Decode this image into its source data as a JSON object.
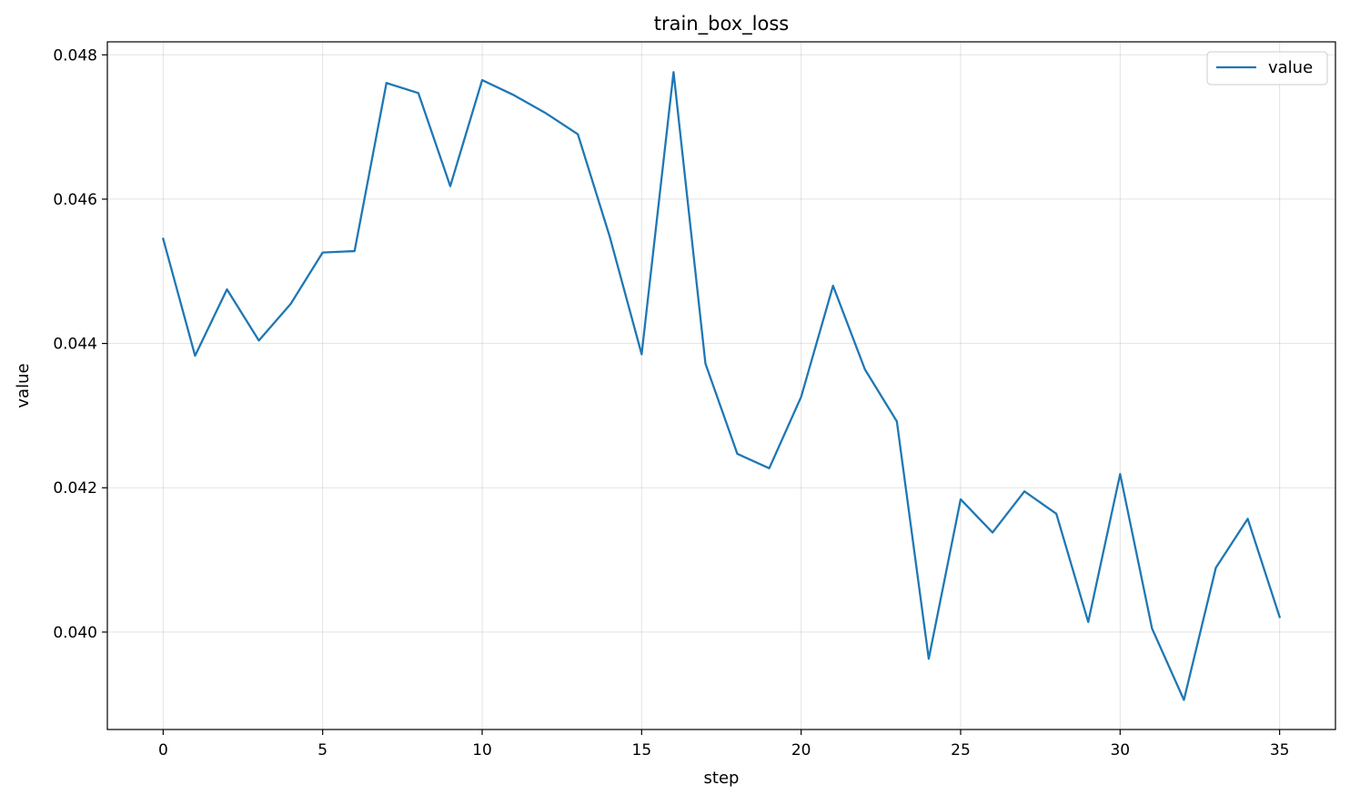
{
  "chart_data": {
    "type": "line",
    "title": "train_box_loss",
    "xlabel": "step",
    "ylabel": "value",
    "xlim": [
      -1.75,
      36.75
    ],
    "ylim": [
      0.03865,
      0.04818
    ],
    "x_ticks": [
      0,
      5,
      10,
      15,
      20,
      25,
      30,
      35
    ],
    "x_tick_labels": [
      "0",
      "5",
      "10",
      "15",
      "20",
      "25",
      "30",
      "35"
    ],
    "y_ticks": [
      0.04,
      0.042,
      0.044,
      0.046,
      0.048
    ],
    "y_tick_labels": [
      "0.040",
      "0.042",
      "0.044",
      "0.046",
      "0.048"
    ],
    "grid": true,
    "legend_position": "top-right",
    "series": [
      {
        "name": "value",
        "color": "#1f77b4",
        "x": [
          0,
          1,
          2,
          3,
          4,
          5,
          6,
          7,
          8,
          9,
          10,
          11,
          12,
          13,
          14,
          15,
          16,
          17,
          18,
          19,
          20,
          21,
          22,
          23,
          24,
          25,
          26,
          27,
          28,
          29,
          30,
          31,
          32,
          33,
          34,
          35
        ],
        "values": [
          0.04545,
          0.04383,
          0.04475,
          0.04404,
          0.04455,
          0.04526,
          0.04528,
          0.04761,
          0.04747,
          0.04618,
          0.04765,
          0.04744,
          0.04719,
          0.0469,
          0.04548,
          0.04385,
          0.04776,
          0.04372,
          0.04247,
          0.04227,
          0.04326,
          0.0448,
          0.04364,
          0.04292,
          0.03963,
          0.04184,
          0.04138,
          0.04195,
          0.04164,
          0.04014,
          0.04219,
          0.04005,
          0.03906,
          0.04089,
          0.04157,
          0.04021
        ]
      }
    ]
  }
}
